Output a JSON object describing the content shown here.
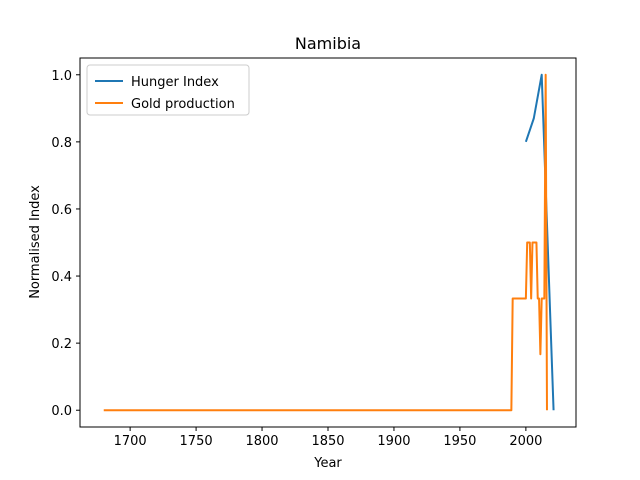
{
  "chart_data": {
    "type": "line",
    "title": "Namibia",
    "xlabel": "Year",
    "ylabel": "Normalised Index",
    "xlim": [
      1662,
      2038
    ],
    "ylim": [
      -0.05,
      1.05
    ],
    "xticks": [
      1700,
      1750,
      1800,
      1850,
      1900,
      1950,
      2000
    ],
    "yticks": [
      "0.0",
      "0.2",
      "0.4",
      "0.6",
      "0.8",
      "1.0"
    ],
    "grid": false,
    "legend_position": "upper-left",
    "series": [
      {
        "name": "Hunger Index",
        "color": "#1f77b4",
        "points": [
          [
            2000,
            0.8
          ],
          [
            2006,
            0.87
          ],
          [
            2012,
            1.0
          ],
          [
            2021,
            0.0
          ]
        ]
      },
      {
        "name": "Gold production",
        "color": "#ff7f0e",
        "points": [
          [
            1680,
            0.0
          ],
          [
            1985,
            0.0
          ],
          [
            1989,
            0.0
          ],
          [
            1990,
            0.333
          ],
          [
            1999,
            0.333
          ],
          [
            2000,
            0.333
          ],
          [
            2001,
            0.5
          ],
          [
            2002,
            0.5
          ],
          [
            2003,
            0.5
          ],
          [
            2004,
            0.333
          ],
          [
            2005,
            0.5
          ],
          [
            2006,
            0.5
          ],
          [
            2007,
            0.5
          ],
          [
            2008,
            0.5
          ],
          [
            2009,
            0.333
          ],
          [
            2010,
            0.333
          ],
          [
            2011,
            0.167
          ],
          [
            2012,
            0.333
          ],
          [
            2013,
            0.333
          ],
          [
            2014,
            0.333
          ],
          [
            2015,
            1.0
          ],
          [
            2016,
            0.0
          ]
        ]
      }
    ]
  }
}
